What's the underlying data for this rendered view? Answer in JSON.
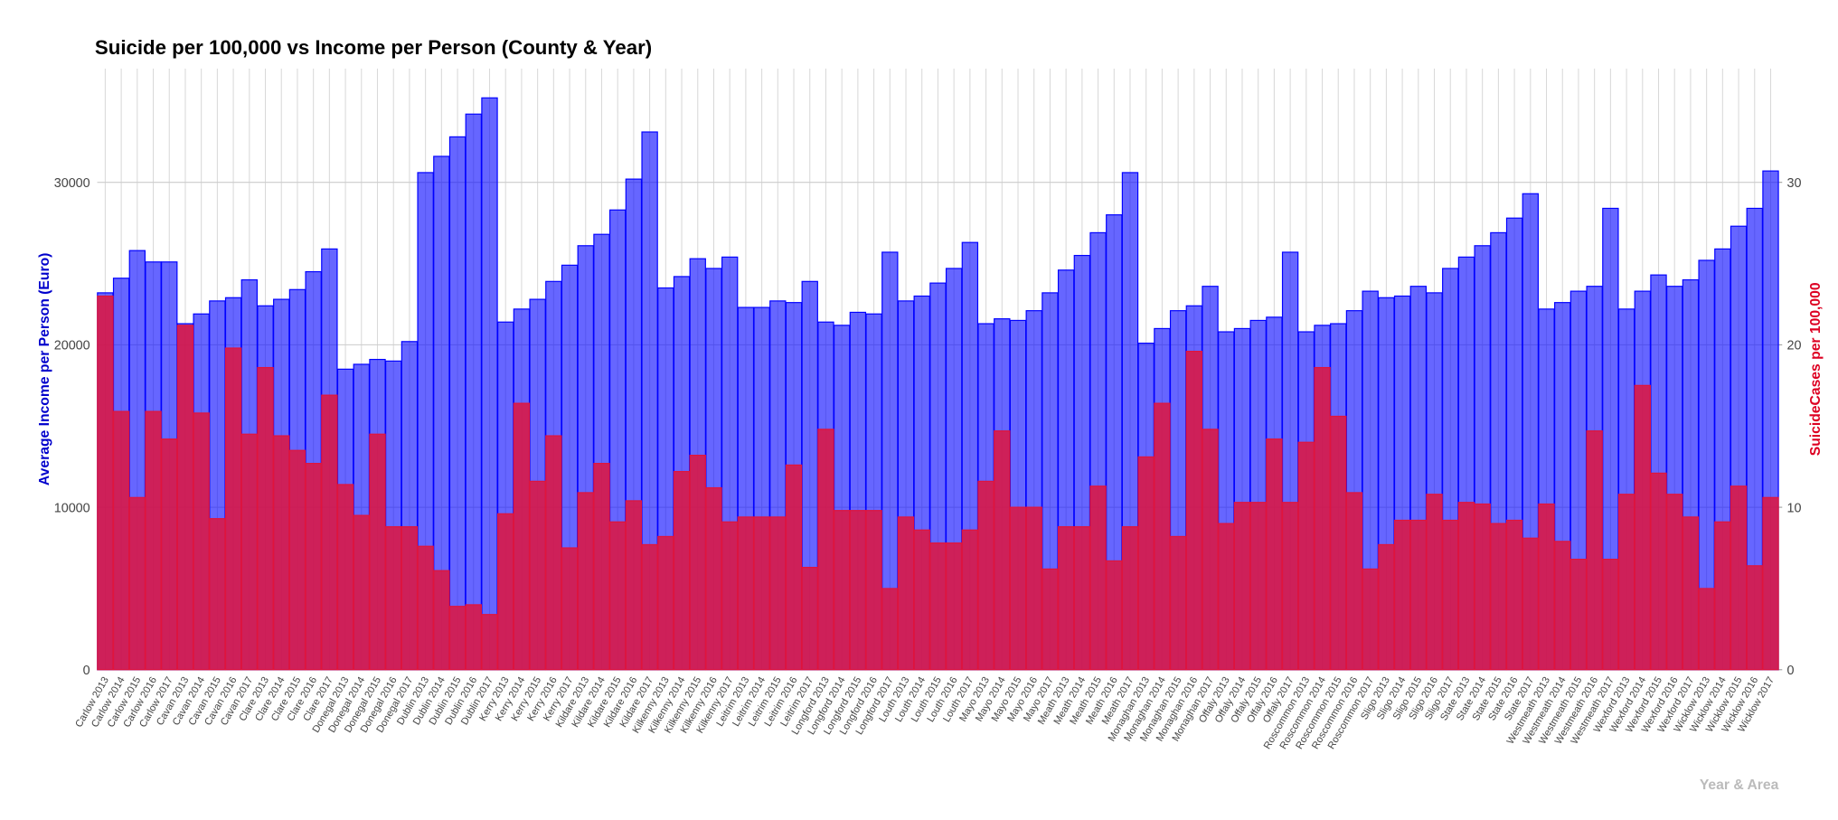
{
  "chart_data": {
    "type": "bar",
    "title": "Suicide per 100,000 vs Income per Person (County & Year)",
    "ylabel": "Average Income per Person (Euro)",
    "y2label": "SuicideCases per 100,000",
    "xlabel": "Year & Area",
    "categories": [
      "Carlow 2013",
      "Carlow 2014",
      "Carlow 2015",
      "Carlow 2016",
      "Carlow 2017",
      "Cavan 2013",
      "Cavan 2014",
      "Cavan 2015",
      "Cavan 2016",
      "Cavan 2017",
      "Clare 2013",
      "Clare 2014",
      "Clare 2015",
      "Clare 2016",
      "Clare 2017",
      "Donegal 2013",
      "Donegal 2014",
      "Donegal 2015",
      "Donegal 2016",
      "Donegal 2017",
      "Dublin 2013",
      "Dublin 2014",
      "Dublin 2015",
      "Dublin 2016",
      "Dublin 2017",
      "Kerry 2013",
      "Kerry 2014",
      "Kerry 2015",
      "Kerry 2016",
      "Kerry 2017",
      "Kildare 2013",
      "Kildare 2014",
      "Kildare 2015",
      "Kildare 2016",
      "Kildare 2017",
      "Kilkenny 2013",
      "Kilkenny 2014",
      "Kilkenny 2015",
      "Kilkenny 2016",
      "Kilkenny 2017",
      "Leitrim 2013",
      "Leitrim 2014",
      "Leitrim 2015",
      "Leitrim 2016",
      "Leitrim 2017",
      "Longford 2013",
      "Longford 2014",
      "Longford 2015",
      "Longford 2016",
      "Longford 2017",
      "Louth 2013",
      "Louth 2014",
      "Louth 2015",
      "Louth 2016",
      "Louth 2017",
      "Mayo 2013",
      "Mayo 2014",
      "Mayo 2015",
      "Mayo 2016",
      "Mayo 2017",
      "Meath 2013",
      "Meath 2014",
      "Meath 2015",
      "Meath 2016",
      "Meath 2017",
      "Monaghan 2013",
      "Monaghan 2014",
      "Monaghan 2015",
      "Monaghan 2016",
      "Monaghan 2017",
      "Offaly 2013",
      "Offaly 2014",
      "Offaly 2015",
      "Offaly 2016",
      "Offaly 2017",
      "Roscommon 2013",
      "Roscommon 2014",
      "Roscommon 2015",
      "Roscommon 2016",
      "Roscommon 2017",
      "Sligo 2013",
      "Sligo 2014",
      "Sligo 2015",
      "Sligo 2016",
      "Sligo 2017",
      "State 2013",
      "State 2014",
      "State 2015",
      "State 2016",
      "State 2017",
      "Westmeath 2013",
      "Westmeath 2014",
      "Westmeath 2015",
      "Westmeath 2016",
      "Westmeath 2017",
      "Wexford 2013",
      "Wexford 2014",
      "Wexford 2015",
      "Wexford 2016",
      "Wexford 2017",
      "Wicklow 2013",
      "Wicklow 2014",
      "Wicklow 2015",
      "Wicklow 2016",
      "Wicklow 2017"
    ],
    "series": [
      {
        "color": "#0000ff",
        "values": [
          23200,
          24100,
          25800,
          25100,
          25100,
          21300,
          21900,
          22700,
          22900,
          24000,
          22400,
          22800,
          23400,
          24500,
          25900,
          18500,
          18800,
          19100,
          19000,
          20200,
          30600,
          31600,
          32800,
          34200,
          35200,
          21400,
          22200,
          22800,
          23900,
          24900,
          26100,
          26800,
          28300,
          30200,
          33100,
          23500,
          24200,
          25300,
          24700,
          25400,
          22300,
          22300,
          22700,
          22600,
          23900,
          21400,
          21200,
          22000,
          21900,
          25700,
          22700,
          23000,
          23800,
          24700,
          26300,
          21300,
          21600,
          21500,
          22100,
          23200,
          24600,
          25500,
          26900,
          28000,
          30600,
          20100,
          21000,
          22100,
          22400,
          23600,
          20800,
          21000,
          21500,
          21700,
          25700,
          20800,
          21200,
          21300,
          22100,
          23300,
          22900,
          23000,
          23600,
          23200,
          24700,
          25400,
          26100,
          26900,
          27800,
          29300,
          22200,
          22600,
          23300,
          23600,
          28400,
          22200,
          23300,
          24300,
          23600,
          24000,
          25200,
          25900,
          27300,
          28400,
          30700
        ]
      },
      {
        "color": "#e0143c",
        "axis": "y2",
        "values": [
          23.0,
          15.9,
          10.6,
          15.9,
          14.2,
          21.2,
          15.8,
          9.3,
          19.8,
          14.5,
          18.6,
          14.4,
          13.5,
          12.7,
          16.9,
          11.4,
          9.5,
          14.5,
          8.8,
          8.8,
          7.6,
          6.1,
          3.9,
          4.0,
          3.4,
          9.6,
          16.4,
          11.6,
          14.4,
          7.5,
          10.9,
          12.7,
          9.1,
          10.4,
          7.7,
          8.2,
          12.2,
          13.2,
          11.2,
          9.1,
          9.4,
          9.4,
          9.4,
          12.6,
          6.3,
          14.8,
          9.8,
          9.8,
          9.8,
          5.0,
          9.4,
          8.6,
          7.8,
          7.8,
          8.6,
          11.6,
          14.7,
          10.0,
          10.0,
          6.2,
          8.8,
          8.8,
          11.3,
          6.7,
          8.8,
          13.1,
          16.4,
          8.2,
          19.6,
          14.8,
          9.0,
          10.3,
          10.3,
          14.2,
          10.3,
          14.0,
          18.6,
          15.6,
          10.9,
          6.2,
          7.7,
          9.2,
          9.2,
          10.8,
          9.2,
          10.3,
          10.2,
          9.0,
          9.2,
          8.1,
          10.2,
          7.9,
          6.8,
          14.7,
          6.8,
          10.8,
          17.5,
          12.1,
          10.8,
          9.4,
          5.0,
          9.1,
          11.3,
          6.4,
          10.6
        ]
      }
    ],
    "ylim": [
      0,
      37000
    ],
    "yticks": [
      0,
      10000,
      20000,
      30000
    ],
    "y2lim": [
      0,
      37
    ],
    "y2ticks": [
      0,
      10,
      20,
      30
    ],
    "grid": true
  }
}
